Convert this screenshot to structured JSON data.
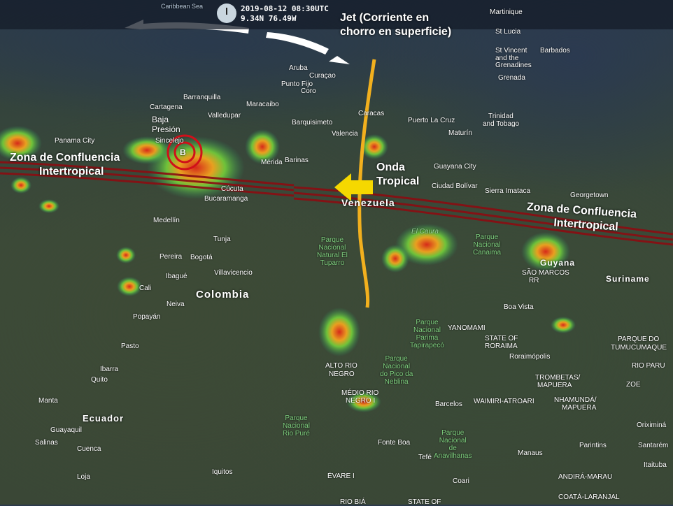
{
  "header": {
    "datetime": "2019-08-12 08:30UTC",
    "coords": "9.34N 76.49W",
    "sea": "Caribbean Sea"
  },
  "annotations": {
    "jet": [
      "Jet (Corriente en",
      "chorro en superficie)"
    ],
    "low": [
      "Baja",
      "Presión"
    ],
    "low_symbol": "B",
    "itcz_west": [
      "Zona de   Confluencia",
      "Intertropical"
    ],
    "itcz_east": [
      "Zona de   Confluencia",
      "Intertropical"
    ],
    "wave": [
      "Onda",
      "Tropical"
    ]
  },
  "countries": [
    "Colombia",
    "Ecuador",
    "Guyana",
    "Suriname",
    "Venezuela"
  ],
  "places": [
    "Martinique",
    "St Lucia",
    "Barbados",
    "St Vincent",
    "and the",
    "Grenadines",
    "Grenada",
    "Trinidad",
    "and Tobago",
    "Aruba",
    "Curaçao",
    "Punto Fijo",
    "Coro",
    "Barranquilla",
    "Cartagena",
    "Valledupar",
    "Maracaibo",
    "Barquisimeto",
    "Valencia",
    "Caracas",
    "Maturín",
    "Puerto La Cruz",
    "Panama City",
    "Sincelejo",
    "Mérida",
    "Barinas",
    "Guayana City",
    "Ciudad Bolívar",
    "Sierra Imataca",
    "Georgetown",
    "Cúcuta",
    "Bucaramanga",
    "Medellín",
    "Tunja",
    "Pereira",
    "Bogotá",
    "Ibagué",
    "Villavicencio",
    "Cali",
    "Neiva",
    "Popayán",
    "Pasto",
    "Ibarra",
    "Quito",
    "Manta",
    "Guayaquil",
    "Salinas",
    "Cuenca",
    "Loja",
    "Iquitos",
    "SÃO MARCOS",
    "RR",
    "Boa Vista",
    "YANOMAMI",
    "STATE OF",
    "RORAIMA",
    "Roraimópolis",
    "PARQUE DO",
    "TUMUCUMAQUE",
    "RIO PARU",
    "ZOE",
    "TROMBETAS/",
    "MAPUERA",
    "NHAMUNDÁ/",
    "MAPUERA",
    "WAIMIRI-ATROARI",
    "Barcelos",
    "ALTO RIO",
    "NEGRO",
    "MÉDIO RIO",
    "NEGRO I",
    "Manaus",
    "Fonte Boa",
    "Tefé",
    "Coari",
    "ÉVARE I",
    "RIO BIÁ",
    "STATE OF",
    "ANDIRÁ-MARAU",
    "COATÁ-LARANJAL",
    "Parintins",
    "Santarém",
    "Oriximiná",
    "Itaituba",
    "El Caura"
  ],
  "parks": [
    "Parque\nNacional\nNatural El\nTuparro",
    "Parque\nNacional\nCanaima",
    "Parque\nNacional\nParima\nTapirapecó",
    "Parque\nNacional\ndo Pico da\nNeblina",
    "Parque\nNacional\nRio Puré",
    "Parque\nNacional\nde\nAnavilhanas"
  ],
  "colors": {
    "itcz": "#8b0d12",
    "jet_arrow": "#ffffff",
    "wave_axis": "#f2b01e",
    "wave_arrow": "#f5d800",
    "low_ring": "#d0101a"
  }
}
